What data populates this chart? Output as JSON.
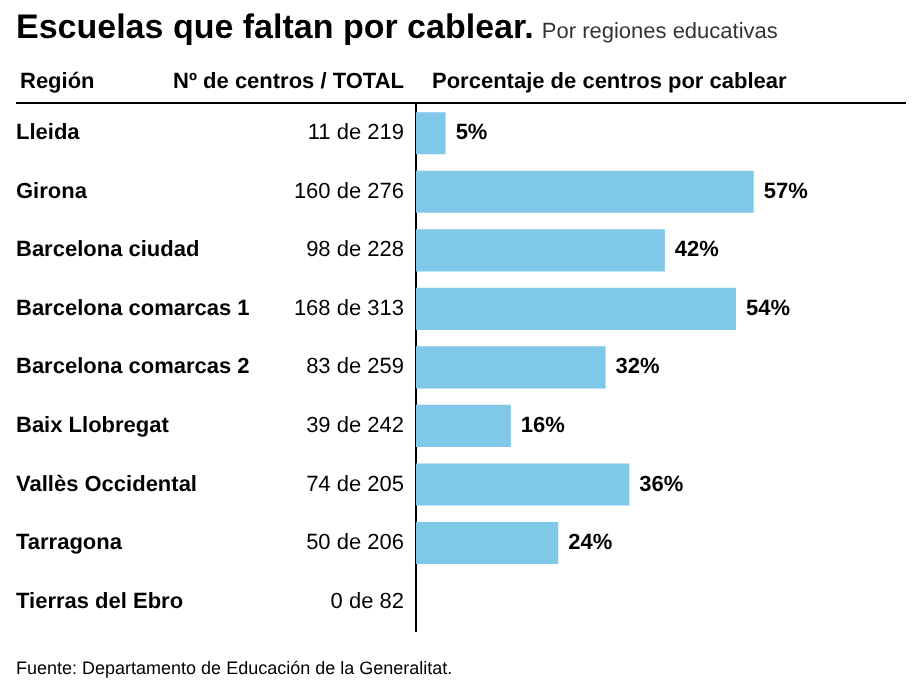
{
  "chart_data": {
    "type": "bar",
    "orientation": "horizontal",
    "title": "Escuelas que faltan por cablear.",
    "subtitle": "Por regiones educativas",
    "ylabel": "Región",
    "xlabel": "Porcentaje de centros por cablear",
    "categories": [
      "Lleida",
      "Girona",
      "Barcelona ciudad",
      "Barcelona comarcas 1",
      "Barcelona comarcas 2",
      "Baix Llobregat",
      "Vallès Occidental",
      "Tarragona",
      "Tierras del Ebro"
    ],
    "values": [
      5,
      57,
      42,
      54,
      32,
      16,
      36,
      24,
      0
    ],
    "value_labels": [
      "5%",
      "57%",
      "42%",
      "54%",
      "32%",
      "16%",
      "36%",
      "24%",
      null
    ],
    "color": "#7fc8e8",
    "grid": false,
    "legend": false,
    "annotations": [
      "Nº de centros / TOTAL",
      "11 de 219",
      "160 de 276",
      "98 de 228",
      "168 de 313",
      "83 de 259",
      "39 de 242",
      "74 de 205",
      "50 de 206",
      "0 de 82",
      "Fuente: Departamento de Educación de la Generalitat."
    ]
  }
}
